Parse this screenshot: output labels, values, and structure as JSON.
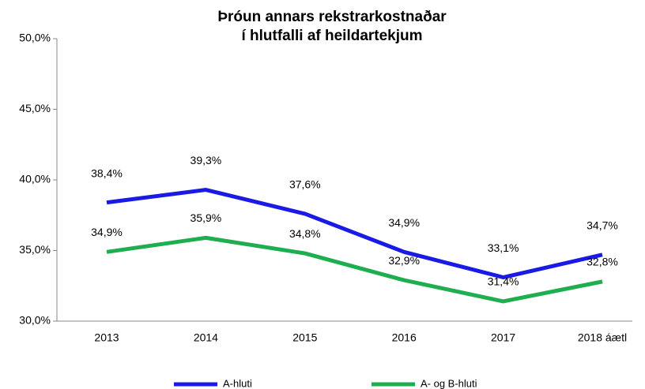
{
  "chart_data": {
    "type": "line",
    "title": [
      "Þróun annars rekstrarkostnaðar",
      "í hlutfalli af heildartekjum"
    ],
    "categories": [
      "2013",
      "2014",
      "2015",
      "2016",
      "2017",
      "2018 áætl"
    ],
    "series": [
      {
        "name": "A-hluti",
        "color": "#1a1ae6",
        "values": [
          38.4,
          39.3,
          37.6,
          34.9,
          33.1,
          34.7
        ],
        "value_labels": [
          "38,4%",
          "39,3%",
          "37,6%",
          "34,9%",
          "33,1%",
          "34,7%"
        ]
      },
      {
        "name": "A- og B-hluti",
        "color": "#1fae4f",
        "values": [
          34.9,
          35.9,
          34.8,
          32.9,
          31.4,
          32.8
        ],
        "value_labels": [
          "34,9%",
          "35,9%",
          "34,8%",
          "32,9%",
          "31,4%",
          "32,8%"
        ]
      }
    ],
    "ylim": [
      30,
      50
    ],
    "yticks": [
      {
        "value": 30,
        "label": "30,0%"
      },
      {
        "value": 35,
        "label": "35,0%"
      },
      {
        "value": 40,
        "label": "40,0%"
      },
      {
        "value": 45,
        "label": "45,0%"
      },
      {
        "value": 50,
        "label": "50,0%"
      }
    ],
    "legend": "bottom"
  }
}
